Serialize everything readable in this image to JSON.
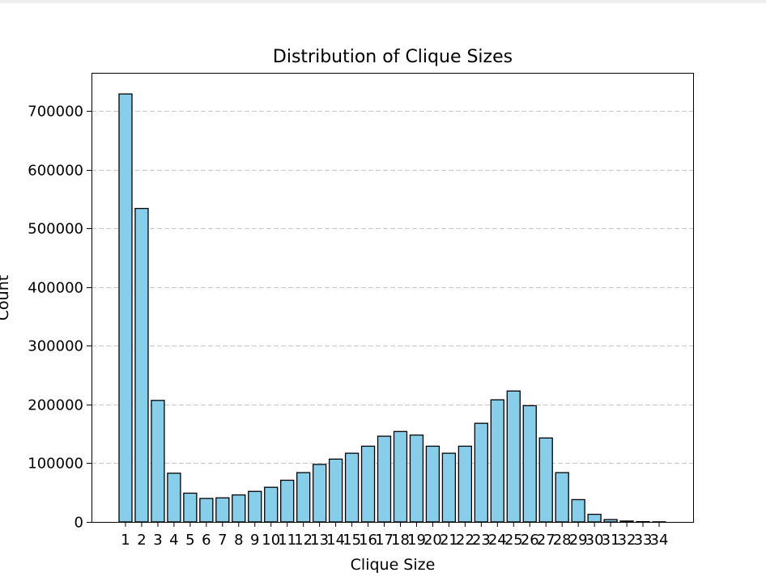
{
  "chart_data": {
    "type": "bar",
    "title": "Distribution of Clique Sizes",
    "xlabel": "Clique Size",
    "ylabel": "Count",
    "categories": [
      "1",
      "2",
      "3",
      "4",
      "5",
      "6",
      "7",
      "8",
      "9",
      "10",
      "11",
      "12",
      "13",
      "14",
      "15",
      "16",
      "17",
      "18",
      "19",
      "20",
      "21",
      "22",
      "23",
      "24",
      "25",
      "26",
      "27",
      "28",
      "29",
      "30",
      "31",
      "32",
      "33",
      "34"
    ],
    "values": [
      729000,
      534000,
      207000,
      83000,
      49000,
      40000,
      41000,
      46000,
      52000,
      59000,
      71000,
      84000,
      98000,
      107000,
      117000,
      129000,
      146000,
      154000,
      148000,
      129000,
      117000,
      129000,
      168000,
      208000,
      223000,
      198000,
      143000,
      84000,
      38000,
      13000,
      4000,
      1500,
      500,
      200
    ],
    "ylim": [
      0,
      765000
    ],
    "yticks": [
      0,
      100000,
      200000,
      300000,
      400000,
      500000,
      600000,
      700000
    ],
    "ytick_labels": [
      "0",
      "100000",
      "200000",
      "300000",
      "400000",
      "500000",
      "600000",
      "700000"
    ],
    "grid": "y-dashed",
    "colors": {
      "bar_fill": "#87ceeb",
      "bar_edge": "#000000",
      "grid": "#c8c8c8"
    }
  }
}
